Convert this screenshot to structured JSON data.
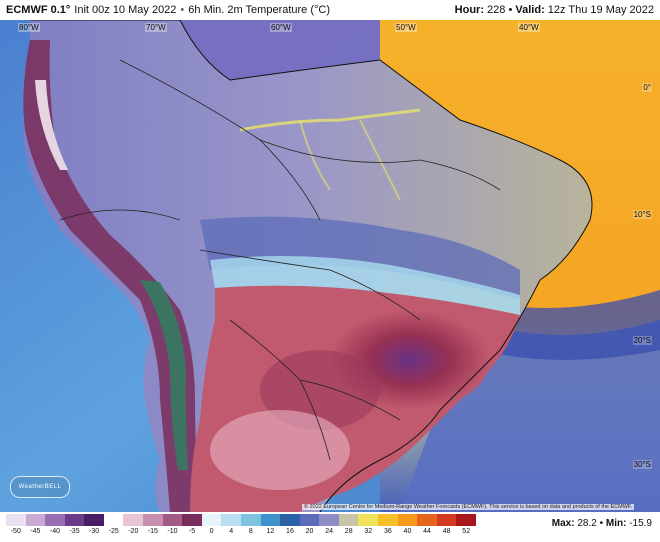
{
  "header": {
    "brand": "ECMWF 0.1°",
    "init": "Init 00z 10 May 2022",
    "separator": "•",
    "product": "6h Min. 2m Temperature (°C)",
    "hour_label": "Hour:",
    "hour_value": "228",
    "valid_label": "Valid:",
    "valid_value": "12z Thu 19 May 2022"
  },
  "map": {
    "lon_labels": [
      "80°W",
      "70°W",
      "60°W",
      "50°W",
      "40°W"
    ],
    "lat_labels": [
      "0°",
      "10°S",
      "20°S",
      "30°S"
    ],
    "copyright": "© 2022 European Centre for Medium-Range Weather Forecasts (ECMWF). This service is based on data and products of the ECMWF.",
    "logo_text": "WeatherBELL"
  },
  "colorbar": {
    "ticks": [
      "-50",
      "-45",
      "-40",
      "-35",
      "-30",
      "-25",
      "-20",
      "-15",
      "-10",
      "-5",
      "0",
      "4",
      "8",
      "12",
      "16",
      "20",
      "24",
      "28",
      "32",
      "36",
      "40",
      "44",
      "48",
      "52"
    ],
    "colors": [
      "#e8e0f0",
      "#c9a9d6",
      "#9a6fb3",
      "#6b3b8a",
      "#4a1e66",
      "#ffffff",
      "#e7c4d6",
      "#c98fb0",
      "#a35a86",
      "#7a2d5a",
      "#e8f4fb",
      "#b8def0",
      "#7ec2e2",
      "#3f93c9",
      "#2d61a8",
      "#5c6cb8",
      "#8e8ec4",
      "#c9c4a6",
      "#f0e35c",
      "#f7c02a",
      "#f49a18",
      "#e8651a",
      "#d43a1f",
      "#a8181a"
    ],
    "max_label": "Max:",
    "max_value": "28.2",
    "min_label": "Min:",
    "min_value": "-15.9"
  }
}
